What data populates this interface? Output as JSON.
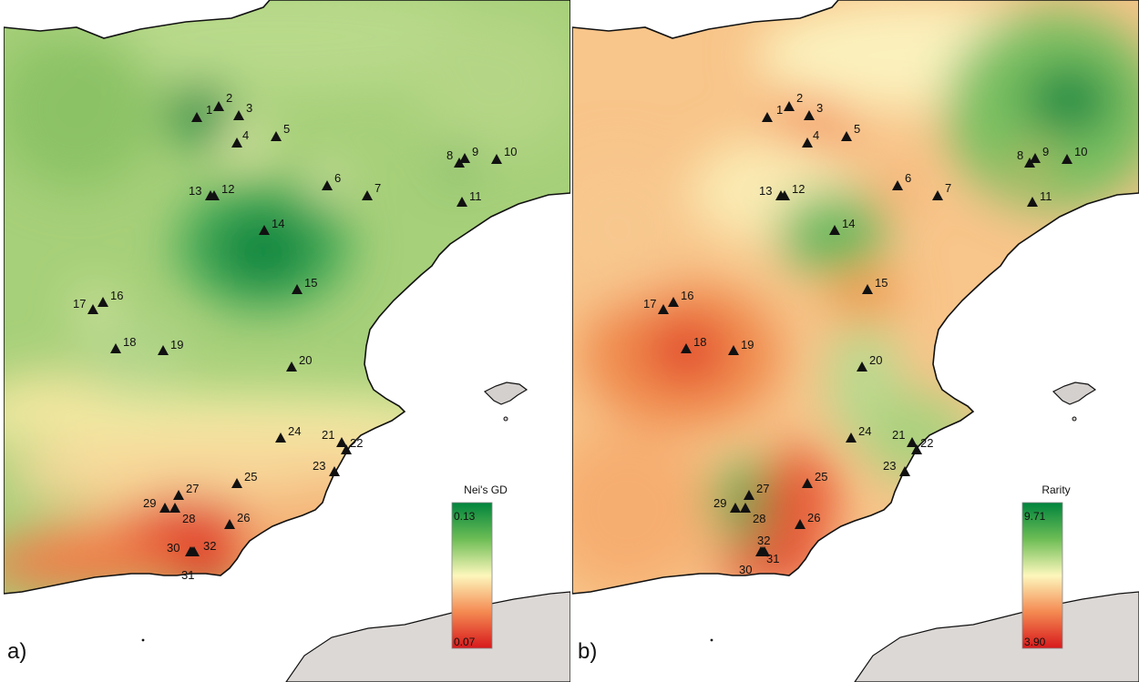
{
  "panels": [
    {
      "letter": "a)",
      "legend": {
        "title": "Nei's GD",
        "max": "0.13",
        "min": "0.07",
        "colors": [
          "#00843d",
          "#6dbd55",
          "#fdf7bc",
          "#f48a52",
          "#d7191c"
        ]
      }
    },
    {
      "letter": "b)",
      "legend": {
        "title": "Rarity",
        "max": "9.71",
        "min": "3.90",
        "colors": [
          "#00843d",
          "#6dbd55",
          "#fdf7bc",
          "#f48a52",
          "#d7191c"
        ]
      }
    }
  ],
  "sites": [
    {
      "label": "1"
    },
    {
      "label": "2"
    },
    {
      "label": "3"
    },
    {
      "label": "4"
    },
    {
      "label": "5"
    },
    {
      "label": "6"
    },
    {
      "label": "7"
    },
    {
      "label": "8"
    },
    {
      "label": "9"
    },
    {
      "label": "10"
    },
    {
      "label": "11"
    },
    {
      "label": "12"
    },
    {
      "label": "13"
    },
    {
      "label": "14"
    },
    {
      "label": "15"
    },
    {
      "label": "16"
    },
    {
      "label": "17"
    },
    {
      "label": "18"
    },
    {
      "label": "19"
    },
    {
      "label": "20"
    },
    {
      "label": "21"
    },
    {
      "label": "22"
    },
    {
      "label": "23"
    },
    {
      "label": "24"
    },
    {
      "label": "25"
    },
    {
      "label": "26"
    },
    {
      "label": "27"
    },
    {
      "label": "28"
    },
    {
      "label": "29"
    },
    {
      "label": "30"
    },
    {
      "label": "31"
    },
    {
      "label": "32"
    }
  ],
  "colors": {
    "sea": "#ffffff",
    "africa": "#dcd8d6",
    "island": "#d4d0ce",
    "coast": "#111111",
    "marker": "#111111"
  }
}
